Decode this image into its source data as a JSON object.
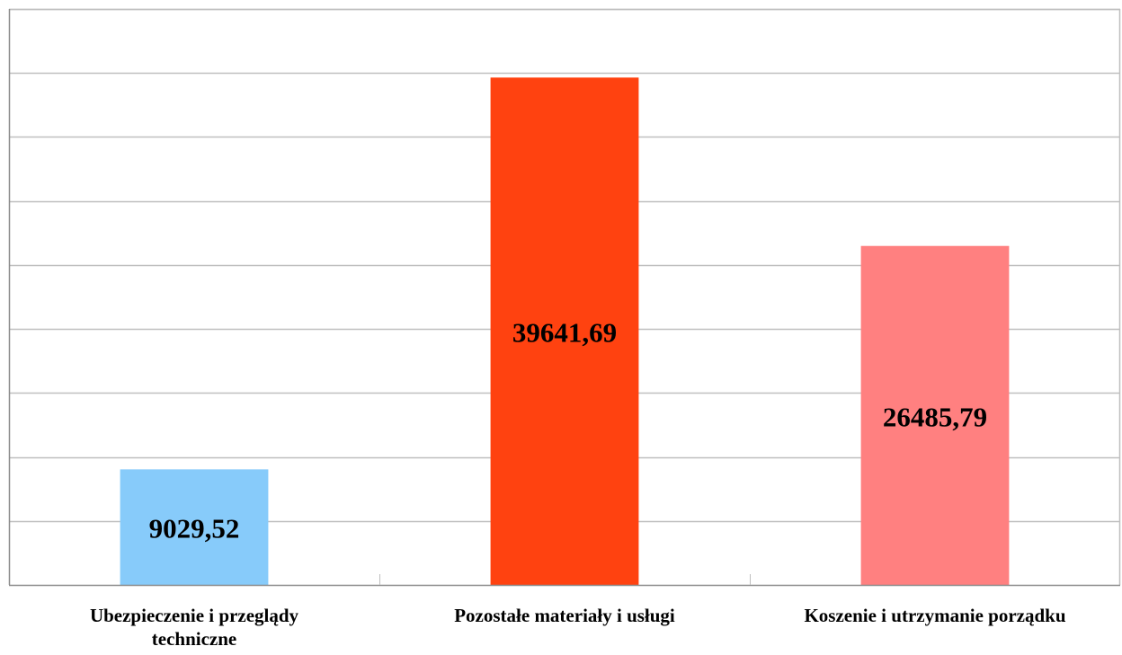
{
  "chart_data": {
    "type": "bar",
    "categories": [
      "Ubezpieczenie i przeglądy techniczne",
      "Pozostałe materiały i usługi",
      "Koszenie i utrzymanie porządku"
    ],
    "category_lines": [
      [
        "Ubezpieczenie i przeglądy",
        "techniczne"
      ],
      [
        "Pozostałe materiały i usługi"
      ],
      [
        "Koszenie i utrzymanie porządku"
      ]
    ],
    "values": [
      9029.52,
      39641.69,
      26485.79
    ],
    "data_labels": [
      "9029,52",
      "39641,69",
      "26485,79"
    ],
    "colors": [
      "#87CBFA",
      "#FF4210",
      "#FF8080"
    ],
    "ylim": [
      0,
      45000
    ],
    "grid": true,
    "title": "",
    "xlabel": "",
    "ylabel": ""
  }
}
